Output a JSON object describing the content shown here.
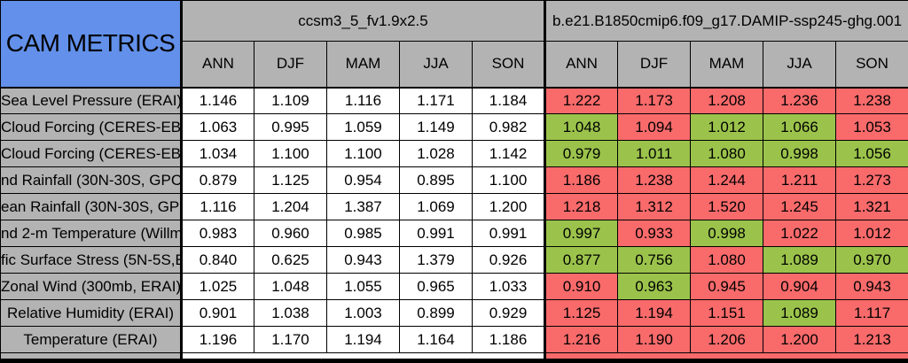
{
  "chart_data": {
    "type": "table",
    "title": "CAM METRICS",
    "colors": {
      "header_blue": "#6290EA",
      "cell_gray": "#B3B3B3",
      "worse_red": "#F96A6B",
      "better_green": "#9BC34B",
      "baseline_white": "#FFFFFF",
      "border_black": "#000000"
    },
    "groups": [
      {
        "label": "ccsm3_5_fv1.9x2.5",
        "seasons": [
          "ANN",
          "DJF",
          "MAM",
          "JJA",
          "SON"
        ]
      },
      {
        "label": "b.e21.B1850cmip6.f09_g17.DAMIP-ssp245-ghg.001",
        "seasons": [
          "ANN",
          "DJF",
          "MAM",
          "JJA",
          "SON"
        ]
      }
    ],
    "rows": [
      {
        "label": "Sea Level Pressure (ERAI)",
        "baseline": [
          "1.146",
          "1.109",
          "1.116",
          "1.171",
          "1.184"
        ],
        "test": [
          "1.222",
          "1.173",
          "1.208",
          "1.236",
          "1.238"
        ],
        "test_colors": [
          "red",
          "red",
          "red",
          "red",
          "red"
        ]
      },
      {
        "label": "Cloud Forcing (CERES-EB",
        "baseline": [
          "1.063",
          "0.995",
          "1.059",
          "1.149",
          "0.982"
        ],
        "test": [
          "1.048",
          "1.094",
          "1.012",
          "1.066",
          "1.053"
        ],
        "test_colors": [
          "green",
          "red",
          "green",
          "green",
          "red"
        ]
      },
      {
        "label": "Cloud Forcing (CERES-EB",
        "baseline": [
          "1.034",
          "1.100",
          "1.100",
          "1.028",
          "1.142"
        ],
        "test": [
          "0.979",
          "1.011",
          "1.080",
          "0.998",
          "1.056"
        ],
        "test_colors": [
          "green",
          "green",
          "green",
          "green",
          "green"
        ]
      },
      {
        "label": "nd Rainfall (30N-30S, GPC",
        "baseline": [
          "0.879",
          "1.125",
          "0.954",
          "0.895",
          "1.100"
        ],
        "test": [
          "1.186",
          "1.238",
          "1.244",
          "1.211",
          "1.273"
        ],
        "test_colors": [
          "red",
          "red",
          "red",
          "red",
          "red"
        ]
      },
      {
        "label": "ean Rainfall (30N-30S, GPC",
        "baseline": [
          "1.116",
          "1.204",
          "1.387",
          "1.069",
          "1.200"
        ],
        "test": [
          "1.218",
          "1.312",
          "1.520",
          "1.245",
          "1.321"
        ],
        "test_colors": [
          "red",
          "red",
          "red",
          "red",
          "red"
        ]
      },
      {
        "label": "nd 2-m Temperature (Willmo",
        "baseline": [
          "0.983",
          "0.960",
          "0.985",
          "0.991",
          "0.991"
        ],
        "test": [
          "0.997",
          "0.933",
          "0.998",
          "1.022",
          "1.012"
        ],
        "test_colors": [
          "green",
          "red",
          "green",
          "red",
          "red"
        ]
      },
      {
        "label": "fic Surface Stress (5N-5S,E",
        "baseline": [
          "0.840",
          "0.625",
          "0.943",
          "1.379",
          "0.926"
        ],
        "test": [
          "0.877",
          "0.756",
          "1.080",
          "1.089",
          "0.970"
        ],
        "test_colors": [
          "green",
          "green",
          "red",
          "green",
          "green"
        ]
      },
      {
        "label": "Zonal Wind (300mb, ERAI)",
        "baseline": [
          "1.025",
          "1.048",
          "1.055",
          "0.965",
          "1.033"
        ],
        "test": [
          "0.910",
          "0.963",
          "0.945",
          "0.904",
          "0.943"
        ],
        "test_colors": [
          "red",
          "green",
          "red",
          "red",
          "red"
        ]
      },
      {
        "label": "Relative Humidity (ERAI)",
        "baseline": [
          "0.901",
          "1.038",
          "1.003",
          "0.899",
          "0.929"
        ],
        "test": [
          "1.125",
          "1.194",
          "1.151",
          "1.089",
          "1.117"
        ],
        "test_colors": [
          "red",
          "red",
          "red",
          "green",
          "red"
        ]
      },
      {
        "label": "Temperature (ERAI)",
        "baseline": [
          "1.196",
          "1.170",
          "1.194",
          "1.164",
          "1.186"
        ],
        "test": [
          "1.216",
          "1.190",
          "1.206",
          "1.200",
          "1.213"
        ],
        "test_colors": [
          "red",
          "red",
          "red",
          "red",
          "red"
        ]
      }
    ]
  }
}
